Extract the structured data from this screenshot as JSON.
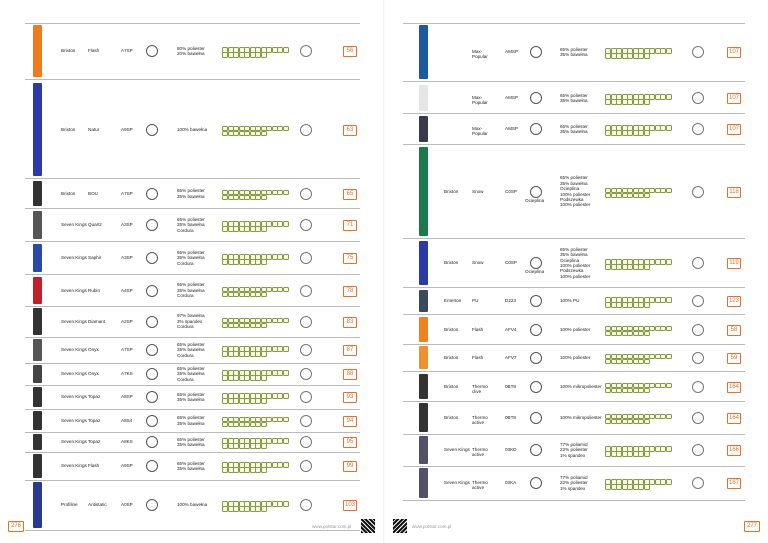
{
  "left": {
    "page_number": "276",
    "footer": "www.polstar.com.pl",
    "rows": [
      {
        "brand": "Brixton",
        "model": "Flash",
        "code": "A7SP",
        "fabric": [
          "80% poliester",
          "20% bawełna"
        ],
        "page": "56"
      },
      {
        "brand": "Brixton",
        "model": "Natur",
        "code": "A9SP",
        "fabric": [
          "100% bawełna"
        ],
        "page": "63"
      },
      {
        "brand": "Brixton",
        "model": "BOU",
        "code": "A7SP",
        "fabric": [
          "65% poliester",
          "35% bawełna"
        ],
        "page": "65"
      },
      {
        "brand": "Seven Kings",
        "model": "Quartz",
        "code": "A3SP",
        "fabric": [
          "65% poliester",
          "35% bawełna",
          "Cordura"
        ],
        "page": "71"
      },
      {
        "brand": "Seven Kings",
        "model": "Saphir",
        "code": "A3SP",
        "fabric": [
          "65% poliester",
          "35% bawełna",
          "Cordura"
        ],
        "page": "75"
      },
      {
        "brand": "Seven Kings",
        "model": "Rubin",
        "code": "A4SP",
        "fabric": [
          "65% poliester",
          "35% bawełna",
          "Cordura"
        ],
        "page": "78"
      },
      {
        "brand": "Seven Kings",
        "model": "Diamant",
        "code": "A2SP",
        "fabric": [
          "97% bawełna",
          "3% spandex",
          "Cordura"
        ],
        "page": "83"
      },
      {
        "brand": "Seven Kings",
        "model": "Onyx",
        "code": "A7SP",
        "fabric": [
          "65% poliester",
          "35% bawełna",
          "Cordura"
        ],
        "page": "87"
      },
      {
        "brand": "Seven Kings",
        "model": "Onyx",
        "code": "A7KS",
        "fabric": [
          "65% poliester",
          "35% bawełna",
          "Cordura"
        ],
        "page": "88"
      },
      {
        "brand": "Seven Kings",
        "model": "Topaz",
        "code": "A8SP",
        "fabric": [
          "65% poliester",
          "35% bawełna"
        ],
        "page": "93"
      },
      {
        "brand": "Seven Kings",
        "model": "Topaz",
        "code": "A8S4",
        "fabric": [
          "65% poliester",
          "35% bawełna"
        ],
        "page": "94"
      },
      {
        "brand": "Seven Kings",
        "model": "Topaz",
        "code": "A8KS",
        "fabric": [
          "65% poliester",
          "35% bawełna"
        ],
        "page": "95"
      },
      {
        "brand": "Seven Kings",
        "model": "Flash",
        "code": "A9SP",
        "fabric": [
          "65% poliester",
          "35% bawełna"
        ],
        "page": "99"
      },
      {
        "brand": "Profiline",
        "model": "Antistatic",
        "code": "A0SP",
        "fabric": [
          "100% bawełna"
        ],
        "page": "103"
      }
    ]
  },
  "right": {
    "page_number": "277",
    "footer": "www.polstar.com.pl",
    "rows": [
      {
        "brand": "",
        "model": "Max-Popular",
        "code": "AMSP",
        "fabric": [
          "65% poliester",
          "35% bawełna"
        ],
        "page": "107"
      },
      {
        "brand": "",
        "model": "Max-Popular",
        "code": "AMSP",
        "fabric": [
          "65% poliester",
          "35% bawełna"
        ],
        "page": "107"
      },
      {
        "brand": "",
        "model": "Max-Popular",
        "code": "AMSP",
        "fabric": [
          "65% poliester",
          "35% bawełna"
        ],
        "page": "107"
      },
      {
        "brand": "Brixton",
        "model": "Snow",
        "code": "C0SP",
        "extra": "Ocieplina",
        "fabric": [
          "65% poliester",
          "35% bawełna",
          "Ocieplina",
          "100% poliester",
          "Podszewka",
          "100% poliester"
        ],
        "page": "118"
      },
      {
        "brand": "Brixton",
        "model": "Snow",
        "code": "C0SP",
        "extra": "Ocieplina",
        "fabric": [
          "65% poliester",
          "35% bawełna",
          "Ocieplina",
          "100% poliester",
          "Podszewka",
          "100% poliester"
        ],
        "page": "119"
      },
      {
        "brand": "Emerton",
        "model": "PU",
        "code": "D223",
        "fabric": [
          "100% PU"
        ],
        "page": "123"
      },
      {
        "brand": "Brixton",
        "model": "Flash",
        "code": "AFV4",
        "fabric": [
          "100% poliester"
        ],
        "page": "58"
      },
      {
        "brand": "Brixton",
        "model": "Flash",
        "code": "AFV7",
        "fabric": [
          "100% poliester"
        ],
        "page": "59"
      },
      {
        "brand": "Brixton",
        "model": "Thermo clive",
        "code": "0BT8",
        "fabric": [
          "100% mikropoliester"
        ],
        "page": "164"
      },
      {
        "brand": "Brixton",
        "model": "Thermo active",
        "code": "0BT8",
        "fabric": [
          "100% mikropoliester"
        ],
        "page": "164"
      },
      {
        "brand": "Seven Kings",
        "model": "Thermo active",
        "code": "03KD",
        "fabric": [
          "77% poliamid",
          "22% poliester",
          "1% spandex"
        ],
        "page": "166"
      },
      {
        "brand": "Seven Kings",
        "model": "Thermo active",
        "code": "03KA",
        "fabric": [
          "77% poliamid",
          "22% poliester",
          "1% spandex"
        ],
        "page": "167"
      }
    ]
  }
}
